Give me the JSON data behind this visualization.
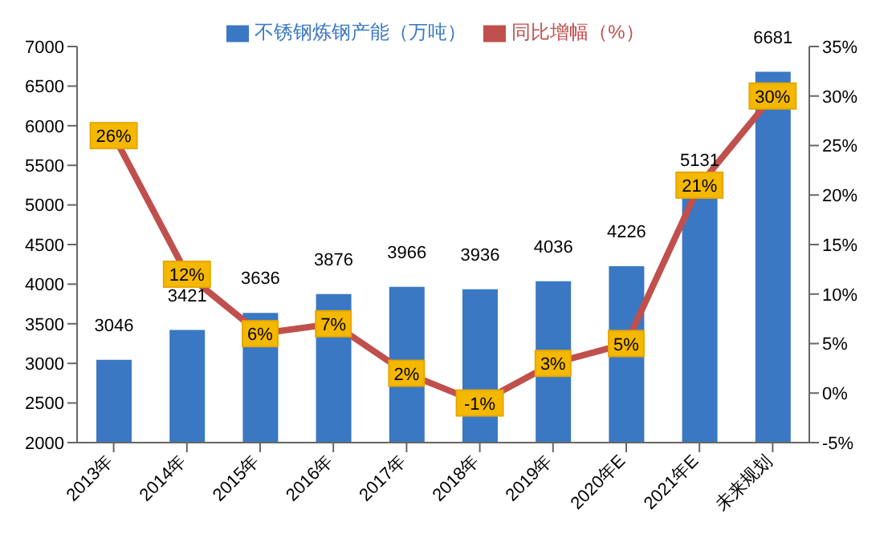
{
  "chart_data": {
    "type": "bar",
    "categories": [
      "2013年",
      "2014年",
      "2015年",
      "2016年",
      "2017年",
      "2018年",
      "2019年",
      "2020年E",
      "2021年E",
      "未来规划"
    ],
    "series": [
      {
        "name": "不锈钢炼钢产能（万吨）",
        "color": "#3a78c3",
        "values": [
          3046,
          3421,
          3636,
          3876,
          3966,
          3936,
          4036,
          4226,
          5131,
          6681
        ],
        "data_labels": true
      },
      {
        "name": "同比增幅（%）",
        "type": "line",
        "axis": "y2",
        "color": "#c0504d",
        "values": [
          26,
          12,
          6,
          7,
          2,
          -1,
          3,
          5,
          21,
          30
        ],
        "value_labels": [
          "26%",
          "12%",
          "6%",
          "7%",
          "2%",
          "-1%",
          "3%",
          "5%",
          "21%",
          "30%"
        ]
      }
    ],
    "ylim": [
      2000,
      7000
    ],
    "yticks": [
      2000,
      2500,
      3000,
      3500,
      4000,
      4500,
      5000,
      5500,
      6000,
      6500,
      7000
    ],
    "y2lim": [
      -5,
      35
    ],
    "y2ticks": [
      {
        "value": -5,
        "label": "-5%"
      },
      {
        "value": 0,
        "label": "0%"
      },
      {
        "value": 5,
        "label": "5%"
      },
      {
        "value": 10,
        "label": "10%"
      },
      {
        "value": 15,
        "label": "15%"
      },
      {
        "value": 20,
        "label": "20%"
      },
      {
        "value": 25,
        "label": "25%"
      },
      {
        "value": 30,
        "label": "30%"
      },
      {
        "value": 35,
        "label": "35%"
      }
    ],
    "legend": "top",
    "grid": false,
    "marker": "square"
  }
}
